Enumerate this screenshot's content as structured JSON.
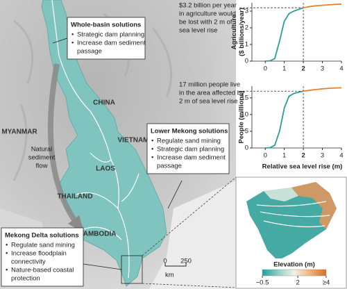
{
  "map": {
    "region_labels": [
      "CHINA",
      "VIETNAM",
      "MYANMAR",
      "LAOS",
      "THAILAND",
      "CAMBODIA"
    ],
    "flow_label": [
      "Natural",
      "sediment",
      "flow"
    ],
    "boxes": [
      {
        "title": "Whole-basin solutions",
        "items": [
          [
            "Strategic dam planning"
          ],
          [
            "Increase dam sediment",
            "passage"
          ]
        ]
      },
      {
        "title": "Lower Mekong solutions",
        "items": [
          [
            "Regulate sand mining"
          ],
          [
            "Strategic dam planning"
          ],
          [
            "Increase dam sediment",
            "passage"
          ]
        ]
      },
      {
        "title": "Mekong Delta solutions",
        "items": [
          [
            "Regulate sand mining"
          ],
          [
            "Increase floodplain",
            "connectivity"
          ],
          [
            "Nature-based coastal",
            "protection"
          ]
        ]
      }
    ],
    "scale": {
      "ticks": [
        0,
        250
      ],
      "unit": "km"
    }
  },
  "inset": {
    "legend_title": "Elevation (m)",
    "range": [
      -0.5,
      4
    ],
    "ticks": [
      {
        "value": -0.5,
        "label": "−0.5"
      },
      2,
      {
        "value": 4,
        "label": "≥4"
      }
    ],
    "colors": [
      "#1f9f9a",
      "#8fd0c8",
      "#f4f1ea",
      "#f0b27a",
      "#dd6b20"
    ]
  },
  "chart_data": [
    {
      "type": "line",
      "ylabel": [
        "Agriculture",
        "($ billions/year)"
      ],
      "annotation": [
        "$3.2 billion per year",
        "in agriculture would",
        "be lost with 2 m of",
        "sea level rise"
      ],
      "x": [
        0,
        0.25,
        0.5,
        0.75,
        1,
        1.25,
        1.5,
        1.75,
        2,
        2.25,
        2.5,
        2.75,
        3,
        3.25,
        3.5,
        3.75,
        4
      ],
      "series": [
        {
          "color": "#2a9d96",
          "values": [
            0,
            0.02,
            0.15,
            1.2,
            2.4,
            2.85,
            3.0,
            3.1,
            3.2,
            null,
            null,
            null,
            null,
            null,
            null,
            null,
            null
          ]
        },
        {
          "color": "#e8822a",
          "values": [
            null,
            null,
            null,
            null,
            null,
            null,
            null,
            null,
            3.2,
            3.26,
            3.3,
            3.33,
            3.35,
            3.37,
            3.39,
            3.41,
            3.42
          ]
        }
      ],
      "xlim": [
        -0.7,
        4
      ],
      "xticks": [
        0,
        1,
        2,
        3,
        4
      ],
      "ylim": [
        0,
        3.5
      ],
      "yticks": [
        0,
        1,
        2,
        3
      ],
      "reference_x": 2
    },
    {
      "type": "line",
      "ylabel": [
        "People (millions)"
      ],
      "annotation": [
        "17 million people live",
        "in the area affected by",
        "2 m of sea level rise"
      ],
      "xlabel": "Relative sea level rise (m)",
      "x": [
        0,
        0.25,
        0.5,
        0.75,
        1,
        1.25,
        1.5,
        1.75,
        2,
        2.25,
        2.5,
        2.75,
        3,
        3.25,
        3.5,
        3.75,
        4
      ],
      "series": [
        {
          "color": "#2a9d96",
          "values": [
            0,
            0.1,
            0.8,
            5,
            12,
            15.5,
            16.3,
            16.7,
            17,
            null,
            null,
            null,
            null,
            null,
            null,
            null,
            null
          ]
        },
        {
          "color": "#e8822a",
          "values": [
            null,
            null,
            null,
            null,
            null,
            null,
            null,
            null,
            17,
            17.2,
            17.4,
            17.55,
            17.7,
            17.8,
            17.9,
            17.95,
            18
          ]
        }
      ],
      "xlim": [
        -0.7,
        4
      ],
      "xticks": [
        0,
        1,
        2,
        3,
        4
      ],
      "ylim": [
        0,
        18.5
      ],
      "yticks": [
        0,
        5,
        10,
        15
      ],
      "reference_x": 2
    }
  ]
}
